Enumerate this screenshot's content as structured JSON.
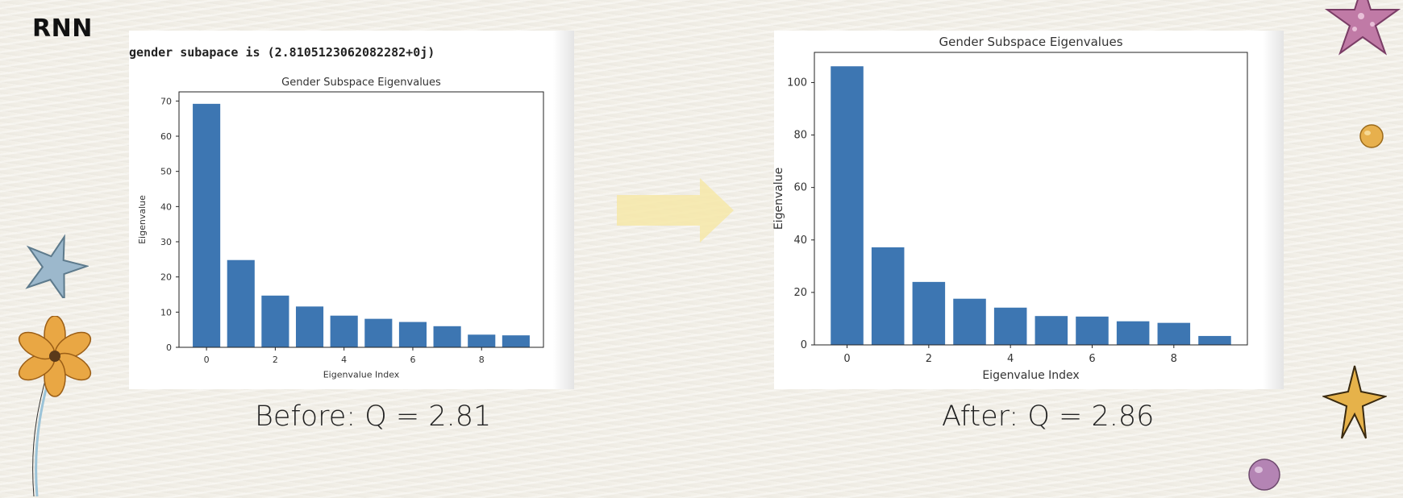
{
  "slide": {
    "title": "RNN"
  },
  "left_panel": {
    "code_output": "gender subapace is (2.8105123062082282+0j)",
    "caption": "Before: Q = 2.81"
  },
  "right_panel": {
    "caption": "After: Q = 2.86"
  },
  "colors": {
    "bar": "#3d76b2",
    "arrow": "#f6e8a8",
    "background": "#f3f0e8"
  },
  "decorations": [
    "star-icon",
    "flower-icon",
    "star-icon",
    "bead-icon",
    "bead-icon",
    "star-icon",
    "arrow-icon"
  ],
  "chart_data": [
    {
      "type": "bar",
      "title": "Gender Subspace Eigenvalues",
      "xlabel": "Eigenvalue Index",
      "ylabel": "Eigenvalue",
      "categories": [
        0,
        1,
        2,
        3,
        4,
        5,
        6,
        7,
        8,
        9
      ],
      "values": [
        69.2,
        24.8,
        14.7,
        11.6,
        9.0,
        8.1,
        7.2,
        6.0,
        3.6,
        3.4
      ],
      "xticks": [
        "0",
        "2",
        "4",
        "6",
        "8"
      ],
      "yticks": [
        "0",
        "10",
        "20",
        "30",
        "40",
        "50",
        "60",
        "70"
      ],
      "ylim": [
        0,
        72.6
      ],
      "grid": false
    },
    {
      "type": "bar",
      "title": "Gender Subspace Eigenvalues",
      "xlabel": "Eigenvalue Index",
      "ylabel": "Eigenvalue",
      "categories": [
        0,
        1,
        2,
        3,
        4,
        5,
        6,
        7,
        8,
        9
      ],
      "values": [
        106.2,
        37.2,
        24.0,
        17.6,
        14.2,
        11.0,
        10.8,
        9.0,
        8.4,
        3.4
      ],
      "xticks": [
        "0",
        "2",
        "4",
        "6",
        "8"
      ],
      "yticks": [
        "0",
        "20",
        "40",
        "60",
        "80",
        "100"
      ],
      "ylim": [
        0,
        111.5
      ],
      "grid": false
    }
  ]
}
